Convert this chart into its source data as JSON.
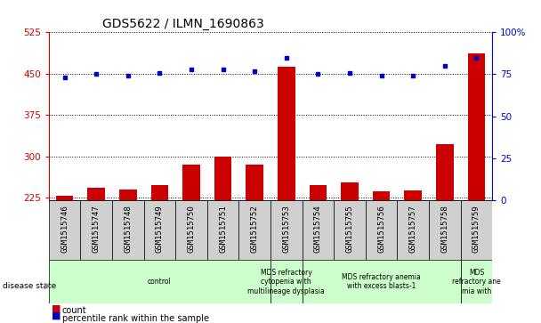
{
  "title": "GDS5622 / ILMN_1690863",
  "samples": [
    "GSM1515746",
    "GSM1515747",
    "GSM1515748",
    "GSM1515749",
    "GSM1515750",
    "GSM1515751",
    "GSM1515752",
    "GSM1515753",
    "GSM1515754",
    "GSM1515755",
    "GSM1515756",
    "GSM1515757",
    "GSM1515758",
    "GSM1515759"
  ],
  "counts": [
    228,
    242,
    240,
    247,
    285,
    300,
    284,
    462,
    248,
    252,
    236,
    238,
    322,
    487
  ],
  "percentile_ranks": [
    73,
    75,
    74,
    76,
    78,
    78,
    77,
    85,
    75,
    76,
    74,
    74,
    80,
    85
  ],
  "ylim_left": [
    220,
    525
  ],
  "ylim_right": [
    0,
    100
  ],
  "yticks_left": [
    225,
    300,
    375,
    450,
    525
  ],
  "yticks_right": [
    0,
    25,
    50,
    75,
    100
  ],
  "disease_groups": [
    {
      "label": "control",
      "start": 0,
      "end": 6
    },
    {
      "label": "MDS refractory\ncytopenia with\nmultilineage dysplasia",
      "start": 7,
      "end": 7
    },
    {
      "label": "MDS refractory anemia\nwith excess blasts-1",
      "start": 8,
      "end": 12
    },
    {
      "label": "MDS\nrefractory ane\nmia with",
      "start": 13,
      "end": 13
    }
  ],
  "disease_group_color": "#ccffcc",
  "bar_color": "#cc0000",
  "dot_color": "#0000cc",
  "bar_width": 0.55,
  "xlabel_fontsize": 6.5,
  "title_fontsize": 10,
  "tick_fontsize": 7.5,
  "count_label": "count",
  "percentile_label": "percentile rank within the sample",
  "left_axis_color": "#cc0000",
  "right_axis_color": "#0000cc",
  "xtick_bg_color": "#d0d0d0"
}
